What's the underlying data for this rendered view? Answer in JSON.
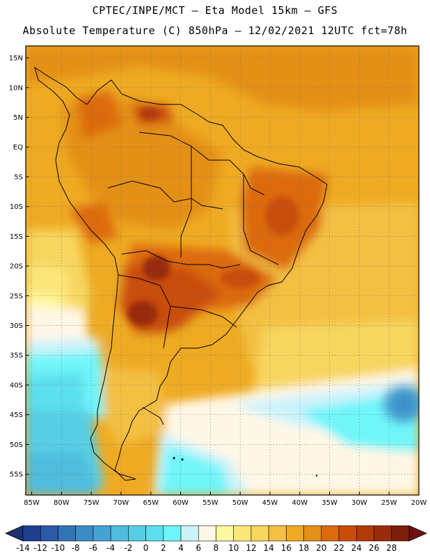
{
  "header": {
    "line1": "CPTEC/INPE/MCT –   Eta Model 15km – GFS",
    "line2": "Absolute Temperature (C) 850hPa – 12/02/2021 12UTC fct=78h"
  },
  "map": {
    "lat_labels": [
      "15N",
      "10N",
      "5N",
      "EQ",
      "5S",
      "10S",
      "15S",
      "20S",
      "25S",
      "30S",
      "35S",
      "40S",
      "45S",
      "50S",
      "55S"
    ],
    "lat_values": [
      15,
      10,
      5,
      0,
      -5,
      -10,
      -15,
      -20,
      -25,
      -30,
      -35,
      -40,
      -45,
      -50,
      -55
    ],
    "lon_labels": [
      "85W",
      "80W",
      "75W",
      "70W",
      "65W",
      "60W",
      "55W",
      "50W",
      "45W",
      "40W",
      "35W",
      "30W",
      "25W",
      "20W"
    ],
    "lon_values": [
      -85,
      -80,
      -75,
      -70,
      -65,
      -60,
      -55,
      -50,
      -45,
      -40,
      -35,
      -30,
      -25,
      -20
    ],
    "extent": {
      "lon_min": -86,
      "lon_max": -20,
      "lat_min": -58.5,
      "lat_max": 17
    }
  },
  "colorbar": {
    "labels": [
      "-14",
      "-12",
      "-10",
      "-8",
      "-6",
      "-4",
      "-2",
      "0",
      "2",
      "4",
      "6",
      "8",
      "10",
      "12",
      "14",
      "16",
      "18",
      "20",
      "22",
      "24",
      "26",
      "28"
    ],
    "colors": [
      "#1f3f8f",
      "#2a5aa6",
      "#3275b6",
      "#3b8dc6",
      "#45a3d3",
      "#4fbcde",
      "#56cfe6",
      "#5cdfee",
      "#6ff5f9",
      "#ccf3fb",
      "#fff7e6",
      "#fff8a0",
      "#fbe67a",
      "#f7d65e",
      "#f3c043",
      "#eeaa22",
      "#e49017",
      "#dc6a0c",
      "#c94d08",
      "#b23a07",
      "#992c08",
      "#7c1e08"
    ],
    "left_arrow_color": "#1c2f6e",
    "right_arrow_color": "#6e1010"
  }
}
